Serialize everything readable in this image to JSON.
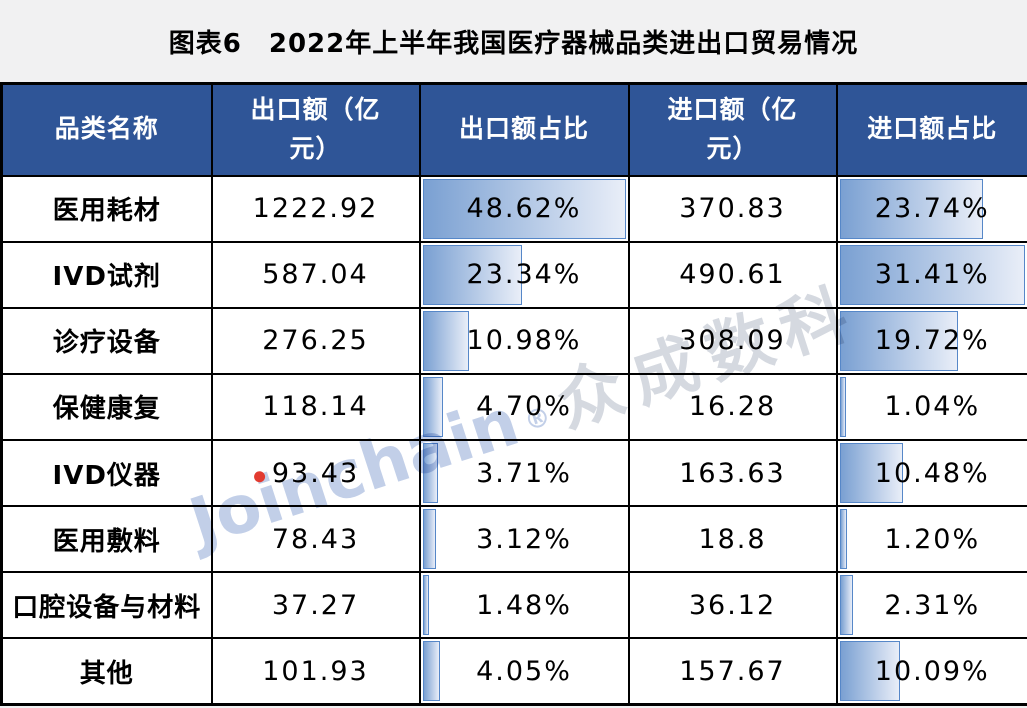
{
  "title": "图表6　2022年上半年我国医疗器械品类进出口贸易情况",
  "table": {
    "columns": [
      "品类名称",
      "出口额（亿元）",
      "出口额占比",
      "进口额（亿元）",
      "进口额占比"
    ],
    "rows": [
      {
        "category": "医用耗材",
        "export_value": "1222.92",
        "export_share": "48.62%",
        "export_pct": 48.62,
        "import_value": "370.83",
        "import_share": "23.74%",
        "import_pct": 23.74
      },
      {
        "category": "IVD试剂",
        "export_value": "587.04",
        "export_share": "23.34%",
        "export_pct": 23.34,
        "import_value": "490.61",
        "import_share": "31.41%",
        "import_pct": 31.41
      },
      {
        "category": "诊疗设备",
        "export_value": "276.25",
        "export_share": "10.98%",
        "export_pct": 10.98,
        "import_value": "308.09",
        "import_share": "19.72%",
        "import_pct": 19.72
      },
      {
        "category": "保健康复",
        "export_value": "118.14",
        "export_share": "4.70%",
        "export_pct": 4.7,
        "import_value": "16.28",
        "import_share": "1.04%",
        "import_pct": 1.04
      },
      {
        "category": "IVD仪器",
        "export_value": "93.43",
        "export_share": "3.71%",
        "export_pct": 3.71,
        "import_value": "163.63",
        "import_share": "10.48%",
        "import_pct": 10.48
      },
      {
        "category": "医用敷料",
        "export_value": "78.43",
        "export_share": "3.12%",
        "export_pct": 3.12,
        "import_value": "18.8",
        "import_share": "1.20%",
        "import_pct": 1.2
      },
      {
        "category": "口腔设备与材料",
        "export_value": "37.27",
        "export_share": "1.48%",
        "export_pct": 1.48,
        "import_value": "36.12",
        "import_share": "2.31%",
        "import_pct": 2.31
      },
      {
        "category": "其他",
        "export_value": "101.93",
        "export_share": "4.05%",
        "export_pct": 4.05,
        "import_value": "157.67",
        "import_share": "10.09%",
        "import_pct": 10.09
      }
    ],
    "databar_columns": [
      "出口额占比",
      "进口额占比"
    ],
    "databar_scaling": "bar width proportional to value, column maximum fills cell"
  },
  "watermark": {
    "text": "Joinchain®众成数科",
    "brand_pre": "Jo",
    "brand_i": "i",
    "brand_post": "nchain",
    "registered": "®",
    "cn": "众成数科"
  },
  "colors": {
    "page_bg": "#F1F1F2",
    "header_bg": "#2F5597",
    "header_text": "#FFFFFF",
    "grid": "#000000",
    "cell_bg": "#FFFFFF",
    "bar_gradient_start": "#7AA0D2",
    "bar_gradient_end": "#E9EEF8",
    "bar_border": "#5687C8",
    "watermark_latin": "#C2CFE8",
    "watermark_cn": "#D5D9E0",
    "watermark_dot": "#E23B30"
  },
  "chart_data": {
    "type": "table",
    "title": "图表6 2022年上半年我国医疗器械品类进出口贸易情况",
    "categories": [
      "医用耗材",
      "IVD试剂",
      "诊疗设备",
      "保健康复",
      "IVD仪器",
      "医用敷料",
      "口腔设备与材料",
      "其他"
    ],
    "series": [
      {
        "name": "出口额（亿元）",
        "values": [
          1222.92,
          587.04,
          276.25,
          118.14,
          93.43,
          78.43,
          37.27,
          101.93
        ]
      },
      {
        "name": "出口额占比(%)",
        "values": [
          48.62,
          23.34,
          10.98,
          4.7,
          3.71,
          3.12,
          1.48,
          4.05
        ]
      },
      {
        "name": "进口额（亿元）",
        "values": [
          370.83,
          490.61,
          308.09,
          16.28,
          163.63,
          18.8,
          36.12,
          157.67
        ]
      },
      {
        "name": "进口额占比(%)",
        "values": [
          23.74,
          31.41,
          19.72,
          1.04,
          10.48,
          1.2,
          2.31,
          10.09
        ]
      }
    ],
    "layout_hints": "share columns rendered as left-anchored gradient data bars scaled to each column's max (48.62% and 31.41%)"
  }
}
